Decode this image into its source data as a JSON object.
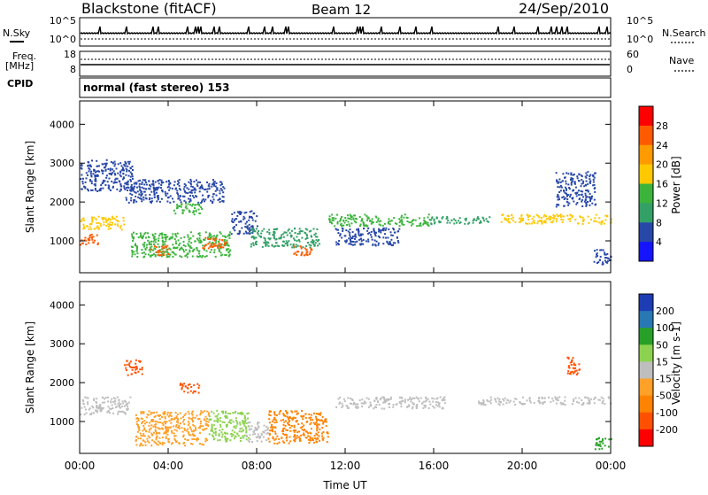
{
  "header": {
    "station": "Blackstone (fitACF)",
    "beam": "Beam 12",
    "date": "24/Sep/2010"
  },
  "noise_panel": {
    "left_label": "N.Sky",
    "right_label": "N.Search",
    "left_ticks": [
      "10^5",
      "10^0"
    ],
    "right_ticks": [
      "10^5",
      "10^0"
    ]
  },
  "freq_panel": {
    "left_label_1": "Freq.",
    "left_label_2": "[MHz]",
    "right_label": "Nave",
    "left_ticks": [
      "18",
      "8"
    ],
    "right_ticks": [
      "60",
      "0"
    ]
  },
  "cpid": {
    "label": "CPID",
    "value": "normal (fast stereo) 153"
  },
  "power_panel": {
    "ylabel": "Slant Range [km]",
    "yticks": [
      "4000",
      "3000",
      "2000",
      "1000"
    ],
    "colorbar_label": "Power [dB]",
    "colorbar_ticks": [
      "28",
      "24",
      "20",
      "16",
      "12",
      "8",
      "4"
    ],
    "colorbar_colors": [
      "#ff0000",
      "#ff5a00",
      "#ff9a00",
      "#ffc800",
      "#3cb43c",
      "#33a066",
      "#2848a8",
      "#1414ff"
    ]
  },
  "velocity_panel": {
    "ylabel": "Slant Range [km]",
    "yticks": [
      "4000",
      "3000",
      "2000",
      "1000"
    ],
    "colorbar_label": "Velocity [m s-1]",
    "colorbar_ticks": [
      "200",
      "100",
      "50",
      "15",
      "-15",
      "-50",
      "-100",
      "-200"
    ],
    "colorbar_colors": [
      "#1e3cb4",
      "#2878b4",
      "#28a028",
      "#8cd250",
      "#bebebe",
      "#ffa028",
      "#ff8200",
      "#ff5000",
      "#ff0000"
    ]
  },
  "x_axis": {
    "label": "Time UT",
    "ticks": [
      "00:00",
      "04:00",
      "08:00",
      "12:00",
      "16:00",
      "20:00",
      "00:00"
    ]
  },
  "chart_data": [
    {
      "type": "heatmap",
      "title": "Power",
      "x_unit": "hours UT",
      "xlim": [
        0,
        24
      ],
      "y_unit": "km",
      "ylim": [
        180,
        4600
      ],
      "colorbar": {
        "label": "Power [dB]",
        "range": [
          0,
          32
        ]
      },
      "regions": [
        {
          "t0": 0.0,
          "t1": 2.0,
          "r0": 1300,
          "r1": 1650,
          "power": 20
        },
        {
          "t0": 0.0,
          "t1": 0.8,
          "r0": 900,
          "r1": 1200,
          "power": 26
        },
        {
          "t0": 0.0,
          "t1": 2.4,
          "r0": 2300,
          "r1": 3100,
          "power": 6
        },
        {
          "t0": 2.0,
          "t1": 6.5,
          "r0": 2000,
          "r1": 2600,
          "power": 6
        },
        {
          "t0": 2.3,
          "t1": 6.8,
          "r0": 600,
          "r1": 1250,
          "power": 15
        },
        {
          "t0": 3.2,
          "t1": 4.0,
          "r0": 650,
          "r1": 900,
          "power": 26
        },
        {
          "t0": 5.5,
          "t1": 6.6,
          "r0": 800,
          "r1": 1100,
          "power": 25
        },
        {
          "t0": 4.2,
          "t1": 5.5,
          "r0": 1700,
          "r1": 2000,
          "power": 14
        },
        {
          "t0": 6.8,
          "t1": 8.0,
          "r0": 1200,
          "r1": 1800,
          "power": 8
        },
        {
          "t0": 7.7,
          "t1": 10.8,
          "r0": 850,
          "r1": 1350,
          "power": 11
        },
        {
          "t0": 9.5,
          "t1": 10.5,
          "r0": 650,
          "r1": 900,
          "power": 25
        },
        {
          "t0": 11.2,
          "t1": 15.8,
          "r0": 1400,
          "r1": 1700,
          "power": 14
        },
        {
          "t0": 11.5,
          "t1": 14.5,
          "r0": 900,
          "r1": 1350,
          "power": 5
        },
        {
          "t0": 15.8,
          "t1": 18.5,
          "r0": 1450,
          "r1": 1650,
          "power": 10
        },
        {
          "t0": 19.0,
          "t1": 24.0,
          "r0": 1450,
          "r1": 1700,
          "power": 18
        },
        {
          "t0": 21.5,
          "t1": 23.3,
          "r0": 1900,
          "r1": 2800,
          "power": 6
        },
        {
          "t0": 23.2,
          "t1": 24.0,
          "r0": 400,
          "r1": 800,
          "power": 8
        }
      ]
    },
    {
      "type": "heatmap",
      "title": "Velocity",
      "x_unit": "hours UT",
      "xlim": [
        0,
        24
      ],
      "y_unit": "km",
      "ylim": [
        180,
        4600
      ],
      "colorbar": {
        "label": "Velocity [m s-1]",
        "range": [
          -200,
          200
        ]
      },
      "regions": [
        {
          "t0": 0.0,
          "t1": 2.3,
          "r0": 1200,
          "r1": 1650,
          "velocity": 0
        },
        {
          "t0": 2.0,
          "t1": 2.8,
          "r0": 2200,
          "r1": 2600,
          "velocity": -200
        },
        {
          "t0": 4.5,
          "t1": 5.4,
          "r0": 1750,
          "r1": 2000,
          "velocity": -200
        },
        {
          "t0": 2.5,
          "t1": 5.8,
          "r0": 400,
          "r1": 1300,
          "velocity": -50
        },
        {
          "t0": 5.8,
          "t1": 7.6,
          "r0": 500,
          "r1": 1300,
          "velocity": 30
        },
        {
          "t0": 7.5,
          "t1": 8.5,
          "r0": 500,
          "r1": 1000,
          "velocity": 0
        },
        {
          "t0": 8.5,
          "t1": 11.2,
          "r0": 450,
          "r1": 1300,
          "velocity": -60
        },
        {
          "t0": 11.5,
          "t1": 16.5,
          "r0": 1350,
          "r1": 1650,
          "velocity": 0
        },
        {
          "t0": 18.0,
          "t1": 24.0,
          "r0": 1450,
          "r1": 1650,
          "velocity": 0
        },
        {
          "t0": 22.0,
          "t1": 22.6,
          "r0": 2200,
          "r1": 2700,
          "velocity": -200
        },
        {
          "t0": 23.2,
          "t1": 24.0,
          "r0": 300,
          "r1": 600,
          "velocity": 60
        }
      ]
    }
  ]
}
